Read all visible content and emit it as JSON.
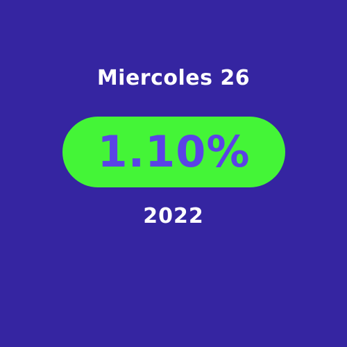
{
  "date_label": "Miercoles 26",
  "rate_value": "1.10%",
  "year_label": "2022",
  "colors": {
    "background": "#3525a1",
    "pill": "#44f537",
    "rate_text": "#5a43e6",
    "label_text": "#ffffff"
  }
}
